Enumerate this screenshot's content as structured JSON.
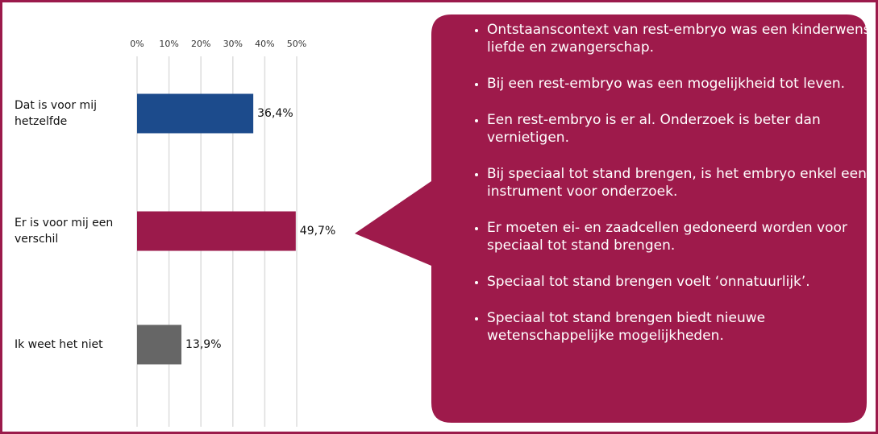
{
  "chart_data": {
    "type": "barh",
    "categories": [
      "Dat is voor mij hetzelfde",
      "Er is voor mij een verschil",
      "Ik weet het niet"
    ],
    "values": [
      36.4,
      49.7,
      13.9
    ],
    "value_labels": [
      "36,4%",
      "49,7%",
      "13,9%"
    ],
    "colors": [
      "#1c4b8c",
      "#9b1a4b",
      "#666666"
    ],
    "xlim": [
      0,
      50
    ],
    "xticks": [
      {
        "value": 0,
        "label": "0%"
      },
      {
        "value": 10,
        "label": "10%"
      },
      {
        "value": 20,
        "label": "20%"
      },
      {
        "value": 30,
        "label": "30%"
      },
      {
        "value": 40,
        "label": "40%"
      },
      {
        "value": 50,
        "label": "50%"
      }
    ],
    "grid": true
  },
  "callout": {
    "color": "#9e1a4b",
    "bullets": [
      "Ontstaanscontext van rest-embryo was een kinderwens, liefde en zwangerschap.",
      "Bij een rest-embryo was een mogelijkheid tot leven.",
      "Een rest-embryo is er al. Onderzoek is beter dan vernietigen.",
      "Bij speciaal tot stand brengen, is het embryo enkel een instrument voor onderzoek.",
      "Er moeten ei- en zaadcellen gedoneerd worden voor speciaal tot stand brengen.",
      "Speciaal tot stand brengen voelt ‘onnatuurlijk’.",
      "Speciaal tot stand brengen biedt nieuwe wetenschappelijke mogelijkheden."
    ]
  }
}
